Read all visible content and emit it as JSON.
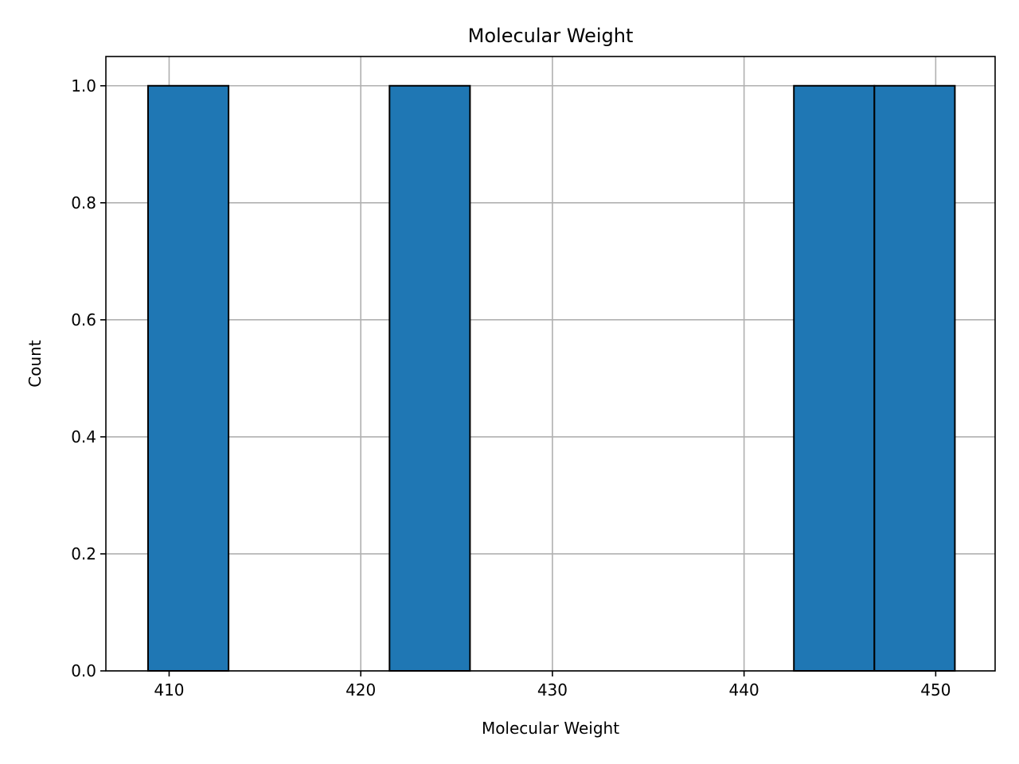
{
  "chart_data": {
    "type": "bar",
    "title": "Molecular Weight",
    "xlabel": "Molecular Weight",
    "ylabel": "Count",
    "xlim": [
      406.7,
      453.1
    ],
    "ylim": [
      0,
      1.05
    ],
    "x_ticks": [
      410,
      420,
      430,
      440,
      450
    ],
    "y_ticks": [
      0.0,
      0.2,
      0.4,
      0.6,
      0.8,
      1.0
    ],
    "x_tick_labels": [
      "410",
      "420",
      "430",
      "440",
      "450"
    ],
    "y_tick_labels": [
      "0.0",
      "0.2",
      "0.4",
      "0.6",
      "0.8",
      "1.0"
    ],
    "grid": true,
    "bins": [
      {
        "start": 408.9,
        "end": 413.1,
        "count": 1
      },
      {
        "start": 421.5,
        "end": 425.7,
        "count": 1
      },
      {
        "start": 442.6,
        "end": 446.8,
        "count": 1
      },
      {
        "start": 446.8,
        "end": 451.0,
        "count": 1
      }
    ],
    "bar_color": "#1f77b4",
    "edge_color": "#000000",
    "grid_color": "#b0b0b0"
  }
}
